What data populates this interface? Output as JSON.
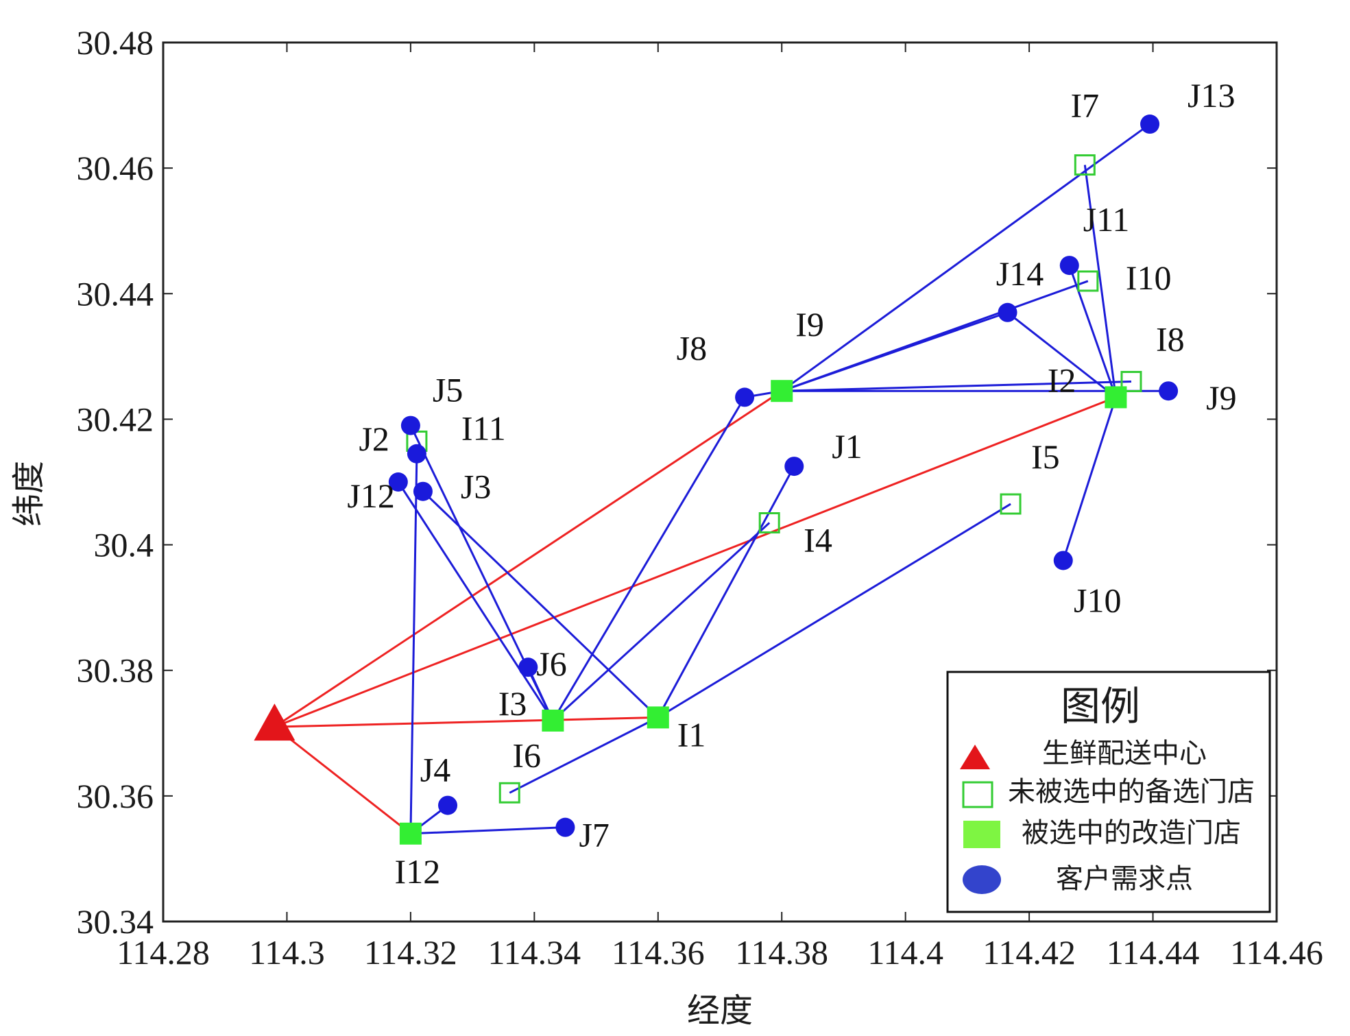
{
  "chart_data": {
    "type": "scatter",
    "xlabel": "经度",
    "ylabel": "纬度",
    "xlim": [
      114.28,
      114.46
    ],
    "ylim": [
      30.34,
      30.48
    ],
    "xticks": [
      "114.28",
      "114.3",
      "114.32",
      "114.34",
      "114.36",
      "114.38",
      "114.4",
      "114.42",
      "114.44",
      "114.46"
    ],
    "yticks": [
      "30.34",
      "30.36",
      "30.38",
      "30.4",
      "30.42",
      "30.44",
      "30.46",
      "30.48"
    ],
    "center": {
      "label": "",
      "x": 114.298,
      "y": 30.371
    },
    "selected_stores": [
      {
        "label": "I1",
        "x": 114.36,
        "y": 30.3725
      },
      {
        "label": "I2",
        "x": 114.434,
        "y": 30.4235
      },
      {
        "label": "I3",
        "x": 114.343,
        "y": 30.372
      },
      {
        "label": "I9",
        "x": 114.38,
        "y": 30.4245
      },
      {
        "label": "I12",
        "x": 114.32,
        "y": 30.354
      }
    ],
    "unselected_stores": [
      {
        "label": "I4",
        "x": 114.378,
        "y": 30.4035
      },
      {
        "label": "I5",
        "x": 114.417,
        "y": 30.4065
      },
      {
        "label": "I6",
        "x": 114.336,
        "y": 30.3605
      },
      {
        "label": "I7",
        "x": 114.429,
        "y": 30.4605
      },
      {
        "label": "I8",
        "x": 114.4365,
        "y": 30.426
      },
      {
        "label": "I10",
        "x": 114.4295,
        "y": 30.442
      },
      {
        "label": "I11",
        "x": 114.321,
        "y": 30.4165
      }
    ],
    "customers": [
      {
        "label": "J1",
        "x": 114.382,
        "y": 30.4125
      },
      {
        "label": "J2",
        "x": 114.321,
        "y": 30.4145
      },
      {
        "label": "J3",
        "x": 114.322,
        "y": 30.4085
      },
      {
        "label": "J4",
        "x": 114.326,
        "y": 30.3585
      },
      {
        "label": "J5",
        "x": 114.32,
        "y": 30.419
      },
      {
        "label": "J6",
        "x": 114.339,
        "y": 30.3805
      },
      {
        "label": "J7",
        "x": 114.345,
        "y": 30.355
      },
      {
        "label": "J8",
        "x": 114.374,
        "y": 30.4235
      },
      {
        "label": "J9",
        "x": 114.4425,
        "y": 30.4245
      },
      {
        "label": "J10",
        "x": 114.4255,
        "y": 30.3975
      },
      {
        "label": "J11",
        "x": 114.4265,
        "y": 30.4445
      },
      {
        "label": "J12",
        "x": 114.318,
        "y": 30.41
      },
      {
        "label": "J13",
        "x": 114.4395,
        "y": 30.467
      },
      {
        "label": "J14",
        "x": 114.4165,
        "y": 30.437
      }
    ],
    "red_routes": [
      [
        "center",
        "I12"
      ],
      [
        "center",
        "I1"
      ],
      [
        "center",
        "I9"
      ],
      [
        "center",
        "I2"
      ]
    ],
    "blue_routes": [
      [
        "I12",
        "J2"
      ],
      [
        "I12",
        "J4"
      ],
      [
        "I12",
        "J7"
      ],
      [
        "I3",
        "J12"
      ],
      [
        "I3",
        "J5"
      ],
      [
        "I3",
        "J6"
      ],
      [
        "I3",
        "J8"
      ],
      [
        "I3",
        "I4"
      ],
      [
        "I1",
        "J3"
      ],
      [
        "I1",
        "J1"
      ],
      [
        "I1",
        "I6"
      ],
      [
        "I1",
        "I5"
      ],
      [
        "I9",
        "J13"
      ],
      [
        "I9",
        "I10"
      ],
      [
        "I9",
        "J14"
      ],
      [
        "I9",
        "I8"
      ],
      [
        "I9",
        "J9"
      ],
      [
        "I9",
        "J8"
      ],
      [
        "I2",
        "J14"
      ],
      [
        "I2",
        "I7"
      ],
      [
        "I2",
        "J11"
      ],
      [
        "I2",
        "J10"
      ]
    ],
    "legend": {
      "title": "图例",
      "placement": "bottom-right",
      "items": [
        {
          "label": "生鲜配送中心",
          "marker": "red-triangle"
        },
        {
          "label": "未被选中的备选门店",
          "marker": "hollow-green-square"
        },
        {
          "label": "被选中的改造门店",
          "marker": "filled-green-square"
        },
        {
          "label": "客户需求点",
          "marker": "blue-circle"
        }
      ]
    },
    "colors": {
      "center": "#e3151a",
      "selected": "#33ee33",
      "unselected": "#33cc33",
      "customer": "#1a1adb",
      "red_route": "#ee2222",
      "blue_route": "#1c1cd8"
    }
  }
}
